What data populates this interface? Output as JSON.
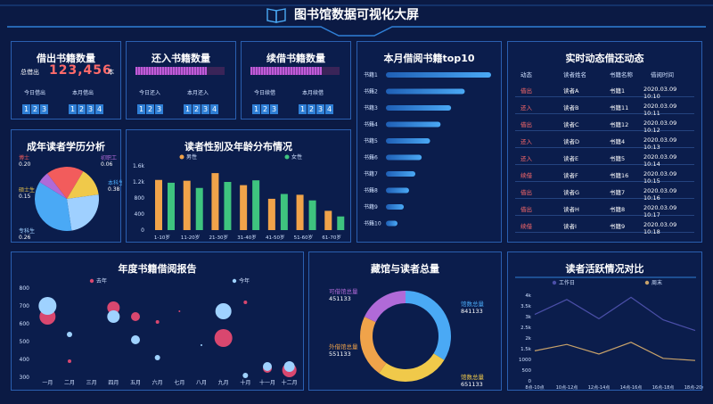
{
  "header": {
    "title": "图书馆数据可视化大屏"
  },
  "borrow": {
    "title": "借出书籍数量",
    "total_label": "总借出",
    "total_value": "123,456",
    "unit": "本",
    "today_label": "今日借出",
    "today_digits": [
      "1",
      "2",
      "3"
    ],
    "month_label": "本月借出",
    "month_digits": [
      "1",
      "2",
      "3",
      "4"
    ]
  },
  "returned": {
    "title": "还入书籍数量",
    "today_label": "今日还入",
    "today_digits": [
      "1",
      "2",
      "3"
    ],
    "month_label": "本月还入",
    "month_digits": [
      "1",
      "2",
      "3",
      "4"
    ],
    "progress": 0.8
  },
  "renew": {
    "title": "续借书籍数量",
    "today_label": "今日续借",
    "today_digits": [
      "1",
      "2",
      "3"
    ],
    "month_label": "本月续借",
    "month_digits": [
      "1",
      "2",
      "3",
      "4"
    ],
    "progress": 0.8
  },
  "colors": {
    "background": "#0b1a44",
    "panel_border": "#2a5fb0",
    "digit_bg": "#2f7fd6",
    "orange": "#f0a34a",
    "green": "#3ec47f",
    "pink": "#d9476f",
    "lightblue": "#9fd2ff",
    "purple": "#b06ad8",
    "red_text": "#ff6a6a"
  },
  "edu_chart": {
    "title": "成年读者学历分析",
    "chart_data": {
      "type": "pie",
      "slices": [
        {
          "label": "博士",
          "value": 0.2,
          "display": "0.20",
          "color": "#f25c5c"
        },
        {
          "label": "硕士生",
          "value": 0.15,
          "display": "0.15",
          "color": "#f0c94a"
        },
        {
          "label": "专科生",
          "value": 0.26,
          "display": "0.26",
          "color": "#9fd0ff"
        },
        {
          "label": "本科生",
          "value": 0.38,
          "display": "0.38",
          "color": "#4aa9f5"
        },
        {
          "label": "初职工",
          "value": 0.06,
          "display": "0.06",
          "color": "#b06ad8"
        }
      ]
    }
  },
  "gender_chart": {
    "title": "读者性别及年龄分布情况",
    "chart_data": {
      "type": "bar",
      "categories": [
        "1-10岁",
        "11-20岁",
        "21-30岁",
        "31-40岁",
        "41-50岁",
        "51-60岁",
        "61-70岁"
      ],
      "series": [
        {
          "name": "男性",
          "values": [
            1250,
            1230,
            1420,
            1120,
            780,
            880,
            480
          ],
          "color": "#f0a34a"
        },
        {
          "name": "女性",
          "values": [
            1180,
            1050,
            1200,
            1240,
            900,
            740,
            340
          ],
          "color": "#3ec47f"
        }
      ],
      "yticks": [
        "1.6k",
        "1.2k",
        "800",
        "400",
        "0"
      ],
      "ylim": [
        0,
        1600
      ]
    }
  },
  "top10": {
    "title": "本月借阅书籍top10",
    "chart_data": {
      "type": "bar",
      "categories": [
        "书籍1",
        "书籍2",
        "书籍3",
        "书籍4",
        "书籍5",
        "书籍6",
        "书籍7",
        "书籍8",
        "书籍9",
        "书籍10"
      ],
      "values": [
        100,
        75,
        62,
        52,
        42,
        34,
        28,
        22,
        17,
        11
      ]
    }
  },
  "realtime": {
    "title": "实时动态借还动态",
    "columns": [
      "动态",
      "读者姓名",
      "书籍名称",
      "借阅时间"
    ],
    "rows": [
      {
        "action": "借出",
        "reader": "读者A",
        "book": "书籍1",
        "time": "2020.03.09 10:10"
      },
      {
        "action": "还入",
        "reader": "读者B",
        "book": "书籍11",
        "time": "2020.03.09 10:11"
      },
      {
        "action": "借出",
        "reader": "读者C",
        "book": "书籍12",
        "time": "2020.03.09 10:12"
      },
      {
        "action": "还入",
        "reader": "读者D",
        "book": "书籍4",
        "time": "2020.03.09 10:13"
      },
      {
        "action": "还入",
        "reader": "读者E",
        "book": "书籍5",
        "time": "2020.03.09 10:14"
      },
      {
        "action": "续借",
        "reader": "读者F",
        "book": "书籍16",
        "time": "2020.03.09 10:15"
      },
      {
        "action": "借出",
        "reader": "读者G",
        "book": "书籍7",
        "time": "2020.03.09 10:16"
      },
      {
        "action": "借出",
        "reader": "读者H",
        "book": "书籍8",
        "time": "2020.03.09 10:17"
      },
      {
        "action": "续借",
        "reader": "读者I",
        "book": "书籍9",
        "time": "2020.03.09 10:18"
      }
    ]
  },
  "annual": {
    "title": "年度书籍借阅报告",
    "chart_data": {
      "type": "scatter",
      "categories": [
        "一月",
        "二月",
        "三月",
        "四月",
        "五月",
        "六月",
        "七月",
        "八月",
        "九月",
        "十月",
        "十一月",
        "十二月"
      ],
      "yticks": [
        "800",
        "700",
        "600",
        "500",
        "400",
        "300"
      ],
      "ylim": [
        300,
        800
      ],
      "series": [
        {
          "name": "去年",
          "color": "#d9476f",
          "points": [
            [
              1,
              640,
              9
            ],
            [
              2,
              390,
              2
            ],
            [
              4,
              690,
              7
            ],
            [
              5,
              640,
              5
            ],
            [
              6,
              610,
              2
            ],
            [
              7,
              670,
              1
            ],
            [
              9,
              520,
              10
            ],
            [
              10,
              720,
              2
            ],
            [
              11,
              350,
              5
            ],
            [
              12,
              340,
              8
            ]
          ]
        },
        {
          "name": "今年",
          "color": "#9fd2ff",
          "points": [
            [
              1,
              700,
              10
            ],
            [
              2,
              540,
              3
            ],
            [
              4,
              640,
              7
            ],
            [
              5,
              510,
              5
            ],
            [
              6,
              410,
              3
            ],
            [
              8,
              480,
              1
            ],
            [
              9,
              670,
              9
            ],
            [
              10,
              310,
              3
            ],
            [
              11,
              360,
              5
            ],
            [
              12,
              360,
              6
            ]
          ]
        }
      ]
    }
  },
  "collection": {
    "title": "藏馆与读者总量",
    "chart_data": {
      "type": "pie",
      "slices": [
        {
          "label": "馆数总量",
          "value": 841133,
          "display": "841133",
          "color": "#4aa9f5"
        },
        {
          "label": "馆数总量",
          "value": 651133,
          "display": "651133",
          "color": "#f0c94a"
        },
        {
          "label": "外借馆总量",
          "value": 551133,
          "display": "551133",
          "color": "#f0a34a"
        },
        {
          "label": "可借馆总量",
          "value": 451133,
          "display": "451133",
          "color": "#b06ad8"
        }
      ]
    }
  },
  "activity": {
    "title": "读者活跃情况对比",
    "chart_data": {
      "type": "line",
      "categories": [
        "8点-10点",
        "10点-12点",
        "12点-14点",
        "14点-16点",
        "16点-18点",
        "18点-20点"
      ],
      "yticks": [
        "4k",
        "3.5k",
        "3k",
        "2.5k",
        "2k",
        "1.5k",
        "1000",
        "500",
        "0"
      ],
      "ylim": [
        0,
        4000
      ],
      "series": [
        {
          "name": "工作日",
          "values": [
            3100,
            3800,
            2900,
            3900,
            2850,
            2350
          ],
          "color": "#4b4fa8"
        },
        {
          "name": "周末",
          "values": [
            1400,
            1700,
            1250,
            1800,
            1050,
            950
          ],
          "color": "#c8a26a"
        }
      ]
    }
  }
}
